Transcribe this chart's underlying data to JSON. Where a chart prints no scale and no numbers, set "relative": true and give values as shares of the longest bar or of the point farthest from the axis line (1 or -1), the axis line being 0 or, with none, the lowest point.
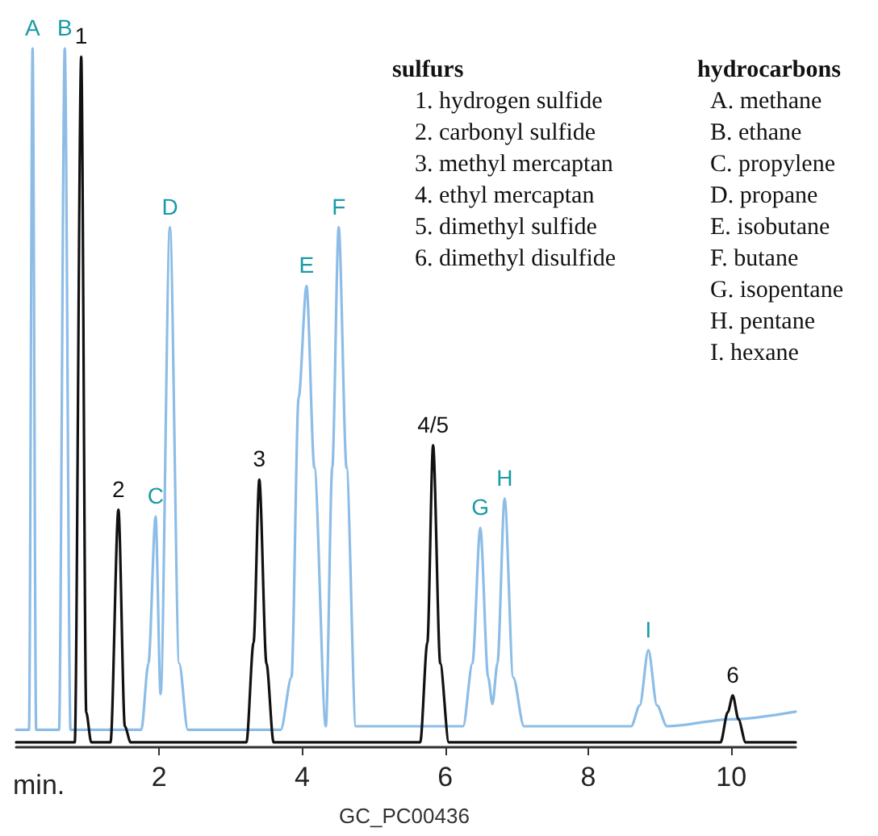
{
  "chart_data": {
    "type": "line",
    "relative": true,
    "xlabel": "min.",
    "xlim": [
      0,
      10.9
    ],
    "xticks": [
      2,
      4,
      6,
      8,
      10
    ],
    "grid": false,
    "marker": "none",
    "line_style": "solid",
    "series": [
      {
        "color": "#8dbde6",
        "x": [
          0,
          0.18,
          0.23,
          0.28,
          0.6,
          0.68,
          0.76,
          1.75,
          1.85,
          1.95,
          2.02,
          2.15,
          2.28,
          2.4,
          3.7,
          3.85,
          3.95,
          4.06,
          4.17,
          4.33,
          4.42,
          4.51,
          4.62,
          4.75,
          6.25,
          6.38,
          6.49,
          6.6,
          6.66,
          6.73,
          6.83,
          6.95,
          7.1,
          8.6,
          8.72,
          8.84,
          8.96,
          9.1,
          10,
          10.9
        ],
        "values": [
          0.025,
          0.025,
          1,
          0.025,
          0.025,
          1,
          0.025,
          0.025,
          0.12,
          0.33,
          0.076,
          0.744,
          0.12,
          0.025,
          0.025,
          0.1,
          0.5,
          0.66,
          0.4,
          0.03,
          0.4,
          0.744,
          0.4,
          0.03,
          0.03,
          0.12,
          0.314,
          0.1,
          0.062,
          0.12,
          0.356,
          0.1,
          0.03,
          0.03,
          0.06,
          0.139,
          0.06,
          0.03,
          0.04,
          0.051
        ]
      },
      {
        "color": "#111111",
        "x": [
          0,
          0.82,
          0.91,
          0.98,
          1.05,
          1.32,
          1.43,
          1.52,
          1.6,
          3.22,
          3.32,
          3.4,
          3.5,
          3.6,
          5.65,
          5.75,
          5.83,
          5.93,
          6.05,
          9.85,
          9.95,
          10.02,
          10.1,
          10.2,
          10.9
        ],
        "values": [
          0.007,
          0.007,
          0.988,
          0.05,
          0.007,
          0.007,
          0.34,
          0.03,
          0.007,
          0.007,
          0.15,
          0.383,
          0.12,
          0.007,
          0.007,
          0.15,
          0.432,
          0.12,
          0.007,
          0.007,
          0.05,
          0.074,
          0.04,
          0.007,
          0.007
        ]
      }
    ],
    "annotations": [
      {
        "text": "A",
        "x": 0.23,
        "y": 1
      },
      {
        "text": "B",
        "x": 0.68,
        "y": 1
      },
      {
        "text": "1",
        "x": 0.91,
        "y": 0.988
      },
      {
        "text": "2",
        "x": 1.43,
        "y": 0.34
      },
      {
        "text": "C",
        "x": 1.95,
        "y": 0.33
      },
      {
        "text": "D",
        "x": 2.15,
        "y": 0.744
      },
      {
        "text": "3",
        "x": 3.4,
        "y": 0.383
      },
      {
        "text": "E",
        "x": 4.06,
        "y": 0.66
      },
      {
        "text": "F",
        "x": 4.51,
        "y": 0.744
      },
      {
        "text": "4/5",
        "x": 5.83,
        "y": 0.432
      },
      {
        "text": "G",
        "x": 6.49,
        "y": 0.314
      },
      {
        "text": "H",
        "x": 6.83,
        "y": 0.356
      },
      {
        "text": "I",
        "x": 8.84,
        "y": 0.139
      },
      {
        "text": "6",
        "x": 10.02,
        "y": 0.074
      },
      "sulfurs",
      "1. hydrogen sulfide",
      "2. carbonyl sulfide",
      "3. methyl mercaptan",
      "4. ethyl mercaptan",
      "5. dimethyl sulfide",
      "6. dimethyl disulfide",
      "hydrocarbons",
      "A. methane",
      "B. ethane",
      "C. propylene",
      "D. propane",
      "E. isobutane",
      "F. butane",
      "G. isopentane",
      "H. pentane",
      "I. hexane",
      "GC_PC00436"
    ]
  }
}
